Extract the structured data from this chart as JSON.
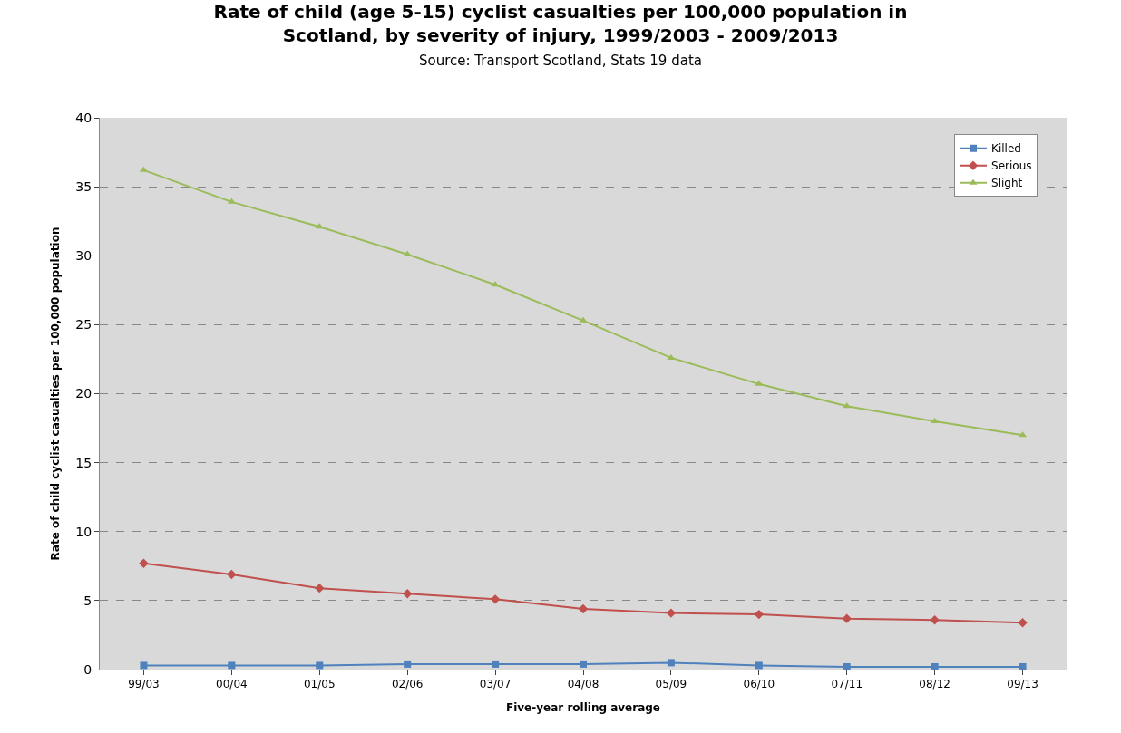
{
  "chart_data": {
    "type": "line",
    "title": "Rate of child (age 5-15) cyclist casualties per 100,000 population in Scotland, by severity of injury, 1999/2003 - 2009/2013",
    "subtitle": "Source: Transport Scotland, Stats 19 data",
    "xlabel": "Five-year rolling average",
    "ylabel": "Rate of child cyclist casualties per 100,000 population",
    "categories": [
      "99/03",
      "00/04",
      "01/05",
      "02/06",
      "03/07",
      "04/08",
      "05/09",
      "06/10",
      "07/11",
      "08/12",
      "09/13"
    ],
    "series": [
      {
        "name": "Killed",
        "color": "#4f81bd",
        "marker": "square",
        "values": [
          0.3,
          0.3,
          0.3,
          0.4,
          0.4,
          0.4,
          0.5,
          0.3,
          0.2,
          0.2,
          0.2
        ]
      },
      {
        "name": "Serious",
        "color": "#c0504d",
        "marker": "diamond",
        "values": [
          7.7,
          6.9,
          5.9,
          5.5,
          5.1,
          4.4,
          4.1,
          4.0,
          3.7,
          3.6,
          3.4
        ]
      },
      {
        "name": "Slight",
        "color": "#9bbb59",
        "marker": "triangle",
        "values": [
          36.2,
          33.9,
          32.1,
          30.1,
          27.9,
          25.3,
          22.6,
          20.7,
          19.1,
          18.0,
          17.0
        ]
      }
    ],
    "ylim": [
      0,
      40
    ],
    "yticks": [
      0,
      5,
      10,
      15,
      20,
      25,
      30,
      35,
      40
    ],
    "grid": "y",
    "legend": "top right",
    "line_style": "solid"
  }
}
